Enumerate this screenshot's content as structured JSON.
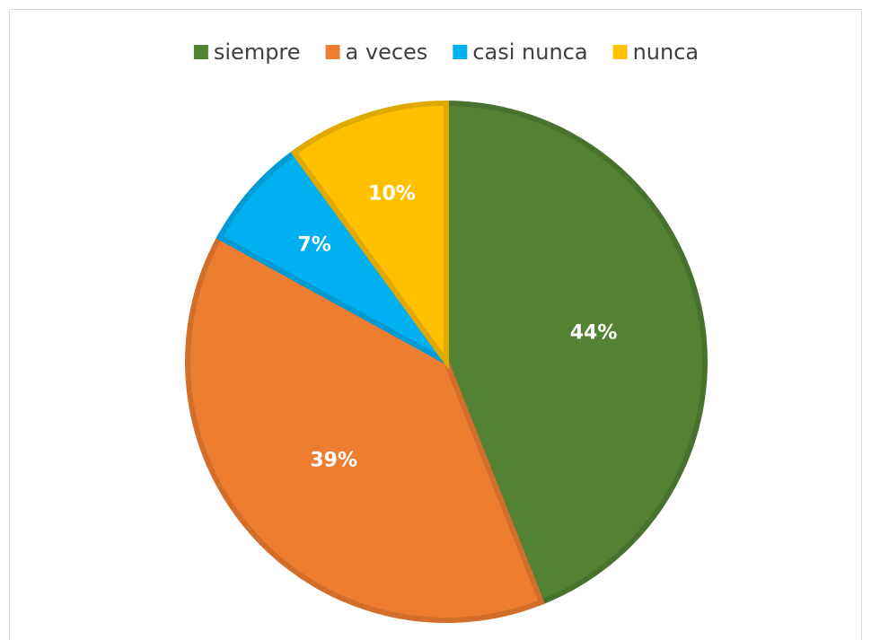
{
  "chart_data": {
    "type": "pie",
    "categories": [
      "siempre",
      "a veces",
      "casi nunca",
      "nunca"
    ],
    "values": [
      44,
      39,
      7,
      10
    ],
    "value_labels": [
      "44%",
      "39%",
      "7%",
      "10%"
    ],
    "colors": [
      "#548235",
      "#ED7D31",
      "#00B0F0",
      "#FFC000"
    ],
    "legend": "top"
  }
}
